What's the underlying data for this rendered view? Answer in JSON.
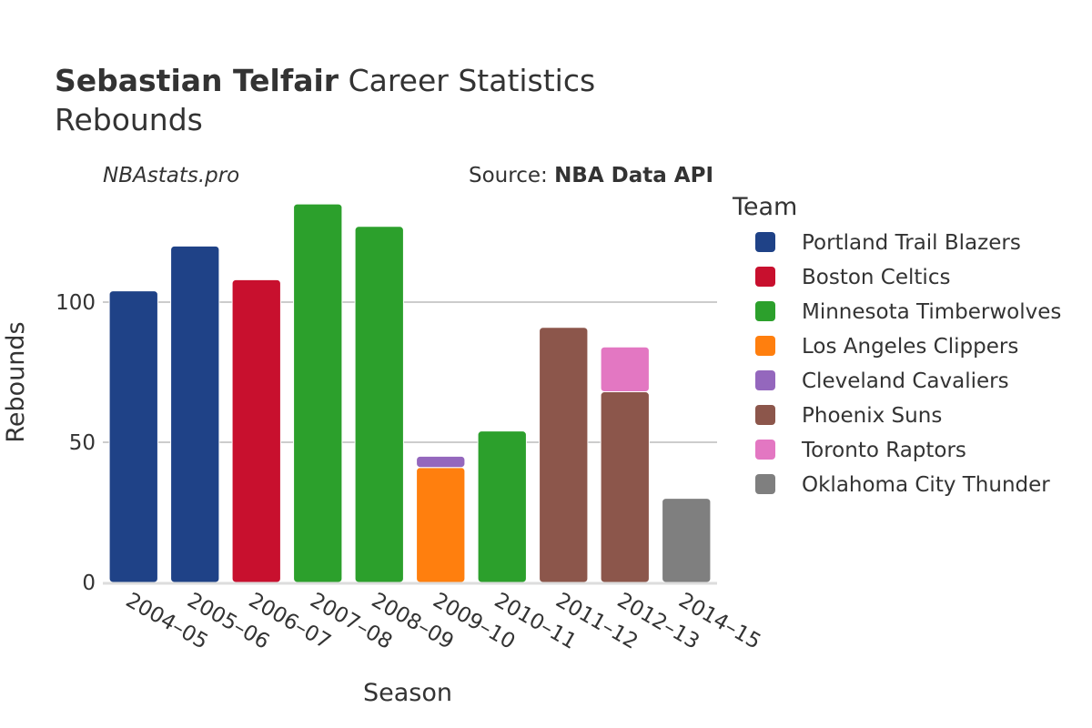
{
  "header": {
    "player_name": "Sebastian Telfair",
    "title_rest": "Career Statistics",
    "subtitle": "Rebounds"
  },
  "watermark": "NBAstats.pro",
  "source": {
    "prefix": "Source: ",
    "name": "NBA Data API"
  },
  "legend": {
    "title": "Team"
  },
  "chart_data": {
    "type": "bar",
    "stacked": true,
    "xlabel": "Season",
    "ylabel": "Rebounds",
    "ylim": [
      0,
      137
    ],
    "yticks": [
      0,
      50,
      100
    ],
    "grid": true,
    "legend_position": "right",
    "categories": [
      "2004–05",
      "2005–06",
      "2006–07",
      "2007–08",
      "2008–09",
      "2009–10",
      "2010–11",
      "2011–12",
      "2012–13",
      "2014–15"
    ],
    "series": [
      {
        "name": "Portland Trail Blazers",
        "color": "#1f4287",
        "values": [
          104,
          120,
          0,
          0,
          0,
          0,
          0,
          0,
          0,
          0
        ]
      },
      {
        "name": "Boston Celtics",
        "color": "#c8102e",
        "values": [
          0,
          0,
          108,
          0,
          0,
          0,
          0,
          0,
          0,
          0
        ]
      },
      {
        "name": "Minnesota Timberwolves",
        "color": "#2ca02c",
        "values": [
          0,
          0,
          0,
          135,
          127,
          0,
          54,
          0,
          0,
          0
        ]
      },
      {
        "name": "Los Angeles Clippers",
        "color": "#ff7f0e",
        "values": [
          0,
          0,
          0,
          0,
          0,
          41,
          0,
          0,
          0,
          0
        ]
      },
      {
        "name": "Cleveland Cavaliers",
        "color": "#9467bd",
        "values": [
          0,
          0,
          0,
          0,
          0,
          4,
          0,
          0,
          0,
          0
        ]
      },
      {
        "name": "Phoenix Suns",
        "color": "#8c564b",
        "values": [
          0,
          0,
          0,
          0,
          0,
          0,
          0,
          91,
          68,
          0
        ]
      },
      {
        "name": "Toronto Raptors",
        "color": "#e377c2",
        "values": [
          0,
          0,
          0,
          0,
          0,
          0,
          0,
          0,
          16,
          0
        ]
      },
      {
        "name": "Oklahoma City Thunder",
        "color": "#7f7f7f",
        "values": [
          0,
          0,
          0,
          0,
          0,
          0,
          0,
          0,
          0,
          30
        ]
      }
    ]
  }
}
